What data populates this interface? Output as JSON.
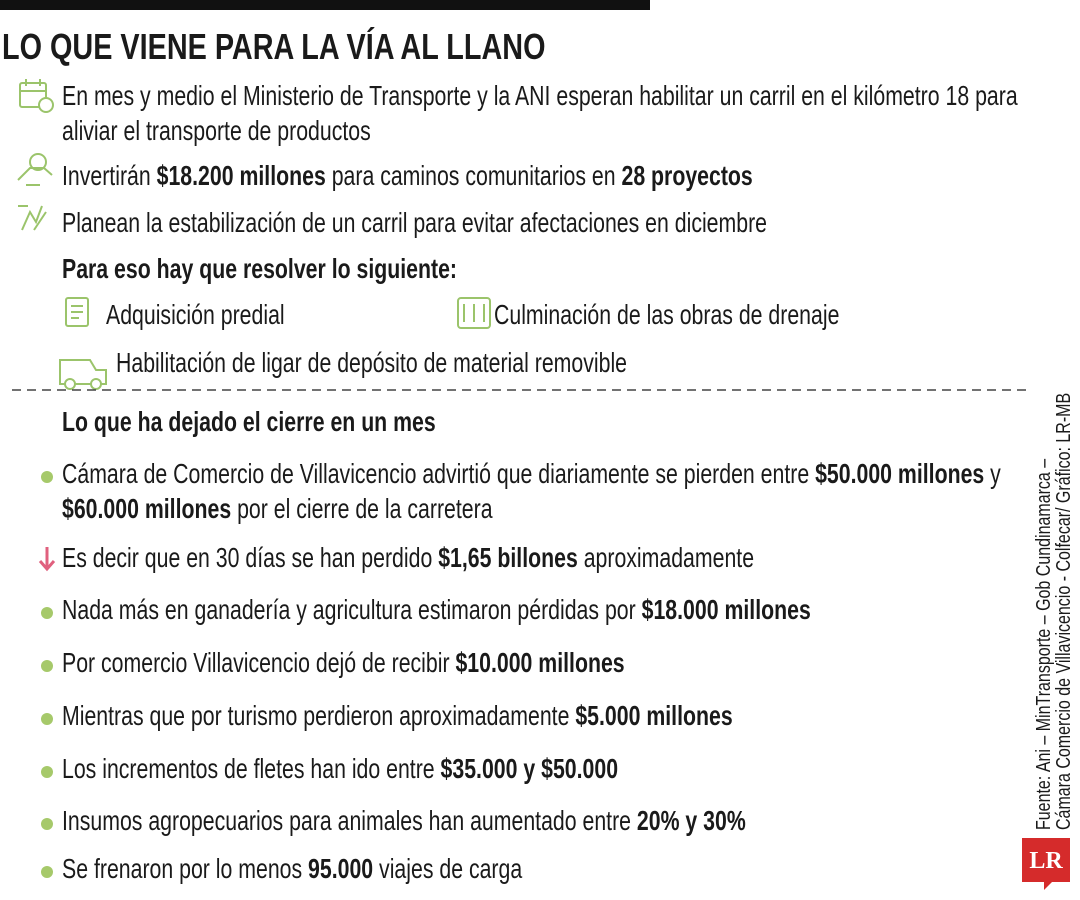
{
  "header": {
    "title": "LO QUE VIENE PARA LA VÍA AL LLANO"
  },
  "plans": [
    {
      "runs": [
        {
          "text": "En mes y medio el Ministerio de Transporte y la ANI esperan habilitar un carril en el kilómetro 18 para aliviar el transporte de productos"
        }
      ]
    },
    {
      "runs": [
        {
          "text": "Invertirán "
        },
        {
          "text": "$18.200 millones",
          "bold": true
        },
        {
          "text": " para caminos comunitarios en "
        },
        {
          "text": "28 proyectos",
          "bold": true
        }
      ]
    },
    {
      "runs": [
        {
          "text": "Planean la estabilización de un carril para evitar afectaciones en diciembre"
        }
      ]
    }
  ],
  "requirements": {
    "heading": "Para eso hay que resolver lo siguiente:",
    "items": [
      "Adquisición predial",
      "Culminación de las obras de drenaje",
      "Habilitación de ligar de depósito de material removible"
    ]
  },
  "impact": {
    "heading": "Lo que ha dejado el cierre en un mes",
    "items": [
      {
        "runs": [
          {
            "text": "Cámara de Comercio de Villavicencio advirtió que diariamente se pierden entre "
          },
          {
            "text": "$50.000 millones",
            "bold": true
          },
          {
            "text": " y "
          },
          {
            "text": "$60.000 millones",
            "bold": true
          },
          {
            "text": " por el cierre de la carretera"
          }
        ]
      },
      {
        "runs": [
          {
            "text": "Es decir que en 30 días se han perdido "
          },
          {
            "text": "$1,65 billones",
            "bold": true
          },
          {
            "text": " aproximadamente"
          }
        ]
      },
      {
        "runs": [
          {
            "text": "Nada más en ganadería y agricultura estimaron pérdidas por "
          },
          {
            "text": "$18.000 millones",
            "bold": true
          }
        ]
      },
      {
        "runs": [
          {
            "text": "Por comercio Villavicencio dejó de recibir "
          },
          {
            "text": "$10.000 millones",
            "bold": true
          }
        ]
      },
      {
        "runs": [
          {
            "text": "Mientras que por turismo perdieron aproximadamente "
          },
          {
            "text": "$5.000 millones",
            "bold": true
          }
        ]
      },
      {
        "runs": [
          {
            "text": "Los incrementos de fletes han ido entre "
          },
          {
            "text": "$35.000 y $50.000",
            "bold": true
          }
        ]
      },
      {
        "runs": [
          {
            "text": "Insumos agropecuarios para animales han aumentado entre "
          },
          {
            "text": "20% y 30%",
            "bold": true
          }
        ]
      },
      {
        "runs": [
          {
            "text": "Se frenaron por lo menos "
          },
          {
            "text": "95.000",
            "bold": true
          },
          {
            "text": " viajes de carga"
          }
        ]
      }
    ]
  },
  "source": {
    "lines": [
      "Fuente: Ani – MinTransporte – Gob Cundinamarca –",
      "Cámara Comercio de Villavicencio - Colfecar/ Gráfico: LR-MB"
    ]
  },
  "logo": "LR"
}
